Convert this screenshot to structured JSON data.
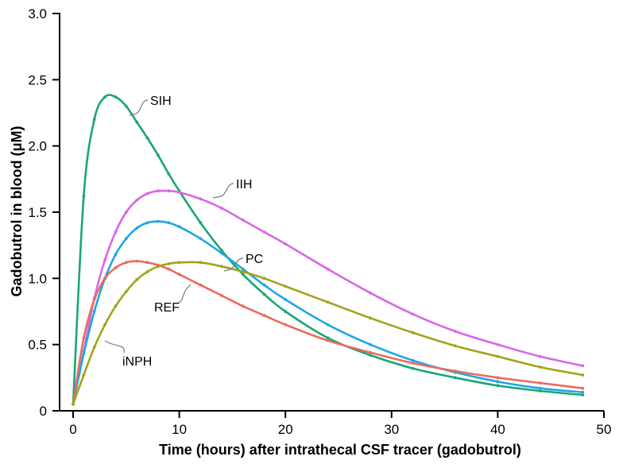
{
  "chart_data": {
    "type": "line",
    "xlabel": "Time (hours) after intrathecal CSF tracer (gadobutrol)",
    "ylabel": "Gadobutrol in blood (μM)",
    "xlim": [
      0,
      50
    ],
    "ylim": [
      0,
      3.0
    ],
    "x_ticks": [
      "0",
      "10",
      "20",
      "30",
      "40",
      "50"
    ],
    "y_ticks": [
      "0",
      "0.5",
      "1.0",
      "1.5",
      "2.0",
      "2.5",
      "3.0"
    ],
    "grid": false,
    "x": [
      0,
      1,
      2,
      3,
      4,
      5,
      6,
      7,
      8,
      9,
      10,
      12,
      14,
      16,
      18,
      20,
      24,
      28,
      32,
      36,
      40,
      44,
      48
    ],
    "series": [
      {
        "name": "SIH",
        "color": "#1aa672",
        "values": [
          0.05,
          1.62,
          2.2,
          2.37,
          2.37,
          2.3,
          2.18,
          2.06,
          1.93,
          1.79,
          1.66,
          1.42,
          1.21,
          1.03,
          0.88,
          0.75,
          0.55,
          0.42,
          0.32,
          0.25,
          0.19,
          0.15,
          0.12
        ]
      },
      {
        "name": "IIH",
        "color": "#d966e6",
        "values": [
          0.05,
          0.45,
          0.85,
          1.14,
          1.35,
          1.5,
          1.59,
          1.64,
          1.66,
          1.66,
          1.65,
          1.6,
          1.53,
          1.44,
          1.35,
          1.26,
          1.07,
          0.89,
          0.73,
          0.6,
          0.5,
          0.41,
          0.34
        ]
      },
      {
        "name": "PC",
        "color": "#1fa6e6",
        "values": [
          0.05,
          0.43,
          0.75,
          1.0,
          1.18,
          1.3,
          1.38,
          1.42,
          1.43,
          1.42,
          1.39,
          1.3,
          1.19,
          1.07,
          0.95,
          0.84,
          0.65,
          0.5,
          0.38,
          0.29,
          0.22,
          0.17,
          0.14
        ]
      },
      {
        "name": "REF",
        "color": "#eb6b5e",
        "values": [
          0.05,
          0.55,
          0.84,
          1.0,
          1.08,
          1.12,
          1.13,
          1.12,
          1.1,
          1.07,
          1.03,
          0.95,
          0.87,
          0.79,
          0.72,
          0.65,
          0.53,
          0.44,
          0.36,
          0.3,
          0.25,
          0.21,
          0.17
        ]
      },
      {
        "name": "iNPH",
        "color": "#a3a31a",
        "values": [
          0.05,
          0.27,
          0.48,
          0.65,
          0.79,
          0.9,
          0.99,
          1.05,
          1.09,
          1.11,
          1.12,
          1.12,
          1.09,
          1.05,
          1.0,
          0.94,
          0.82,
          0.7,
          0.59,
          0.49,
          0.41,
          0.33,
          0.27
        ]
      }
    ]
  }
}
